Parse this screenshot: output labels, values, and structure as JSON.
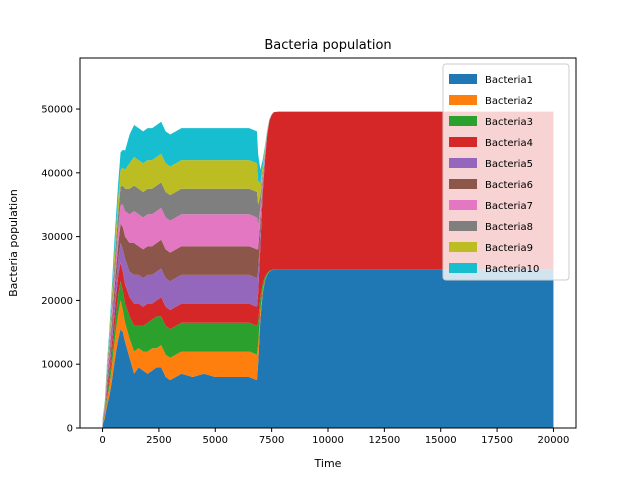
{
  "chart_data": {
    "type": "area",
    "stacked": true,
    "title": "Bacteria population",
    "xlabel": "Time",
    "ylabel": "Bacteria population",
    "xlim": [
      -1000,
      21000
    ],
    "ylim": [
      0,
      58000
    ],
    "xticks": [
      0,
      2500,
      5000,
      7500,
      10000,
      12500,
      15000,
      17500,
      20000
    ],
    "yticks": [
      0,
      10000,
      20000,
      30000,
      40000,
      50000
    ],
    "grid": false,
    "legend_position": "top-right",
    "x": [
      0,
      100,
      200,
      300,
      400,
      500,
      600,
      700,
      800,
      900,
      1000,
      1200,
      1400,
      1600,
      1800,
      2000,
      2200,
      2400,
      2600,
      2800,
      3000,
      3500,
      4000,
      4500,
      5000,
      5500,
      6000,
      6500,
      6850,
      6900,
      7000,
      7100,
      7200,
      7300,
      7400,
      7500,
      7600,
      7800,
      8000,
      10000,
      12500,
      15000,
      17500,
      20000
    ],
    "series": [
      {
        "name": "Bacteria1",
        "color": "#1f77b4",
        "values": [
          500,
          1500,
          3500,
          5000,
          7000,
          9500,
          12000,
          14000,
          15500,
          15000,
          13500,
          11000,
          8500,
          9500,
          9000,
          8500,
          9000,
          9500,
          9500,
          8000,
          7500,
          8500,
          8000,
          8500,
          8000,
          8000,
          8000,
          8000,
          7500,
          10000,
          17000,
          21000,
          23000,
          24000,
          24500,
          24700,
          24800,
          24800,
          24800,
          24800,
          24800,
          24800,
          24800,
          24800
        ]
      },
      {
        "name": "Bacteria2",
        "color": "#ff7f0e",
        "values": [
          100,
          400,
          1000,
          1500,
          2200,
          3000,
          3500,
          4000,
          4500,
          3500,
          3000,
          3000,
          3500,
          3000,
          3000,
          3500,
          3500,
          3000,
          3500,
          3500,
          3500,
          3500,
          4000,
          3500,
          4000,
          4000,
          4000,
          4000,
          4000,
          3000,
          1500,
          600,
          200,
          80,
          30,
          10,
          0,
          0,
          0,
          0,
          0,
          0,
          0,
          0
        ]
      },
      {
        "name": "Bacteria3",
        "color": "#2ca02c",
        "values": [
          100,
          300,
          800,
          1200,
          1800,
          2200,
          2500,
          3000,
          3000,
          3000,
          3000,
          3500,
          4000,
          3500,
          4000,
          4500,
          4500,
          5000,
          4500,
          4500,
          4500,
          4500,
          4500,
          4500,
          4500,
          4500,
          4500,
          4500,
          4500,
          3500,
          2000,
          1000,
          500,
          200,
          100,
          50,
          20,
          0,
          0,
          0,
          0,
          0,
          0,
          0
        ]
      },
      {
        "name": "Bacteria4",
        "color": "#d62728",
        "values": [
          100,
          300,
          800,
          1200,
          1600,
          2000,
          2500,
          3000,
          3000,
          3000,
          3000,
          3000,
          3500,
          3500,
          3000,
          3000,
          2500,
          2500,
          3000,
          3000,
          3000,
          3000,
          3000,
          3000,
          3000,
          3000,
          3000,
          3000,
          3000,
          4500,
          8000,
          14000,
          18000,
          21500,
          23500,
          24300,
          24700,
          24800,
          24800,
          24800,
          24800,
          24800,
          24800,
          24800
        ]
      },
      {
        "name": "Bacteria5",
        "color": "#9467bd",
        "values": [
          100,
          300,
          700,
          1100,
          1500,
          1900,
          2200,
          2500,
          3000,
          3500,
          4000,
          4000,
          4500,
          4500,
          4500,
          4500,
          4500,
          4500,
          4500,
          4500,
          4500,
          4500,
          4500,
          4500,
          4500,
          4500,
          4500,
          4500,
          4500,
          3500,
          2000,
          900,
          400,
          150,
          50,
          20,
          0,
          0,
          0,
          0,
          0,
          0,
          0,
          0
        ]
      },
      {
        "name": "Bacteria6",
        "color": "#8c564b",
        "values": [
          100,
          300,
          700,
          1100,
          1500,
          1900,
          2200,
          2500,
          3000,
          3500,
          3500,
          4500,
          5000,
          4500,
          4500,
          4500,
          4500,
          4500,
          4500,
          4500,
          4500,
          4500,
          4500,
          4500,
          4500,
          4500,
          4500,
          4500,
          4500,
          3500,
          2000,
          900,
          400,
          150,
          50,
          20,
          0,
          0,
          0,
          0,
          0,
          0,
          0,
          0
        ]
      },
      {
        "name": "Bacteria7",
        "color": "#e377c2",
        "values": [
          100,
          300,
          700,
          1100,
          1500,
          1900,
          2200,
          2500,
          3000,
          3500,
          4000,
          4500,
          5000,
          5000,
          5000,
          5000,
          5000,
          5000,
          5000,
          5000,
          5000,
          5000,
          5000,
          5000,
          5000,
          5000,
          5000,
          5000,
          5000,
          3800,
          2000,
          900,
          400,
          150,
          50,
          20,
          0,
          0,
          0,
          0,
          0,
          0,
          0,
          0
        ]
      },
      {
        "name": "Bacteria8",
        "color": "#7f7f7f",
        "values": [
          100,
          300,
          700,
          1000,
          1400,
          1800,
          2100,
          2400,
          2800,
          3000,
          3500,
          4000,
          4000,
          4000,
          4000,
          4000,
          4000,
          4000,
          4000,
          4000,
          4000,
          4000,
          4000,
          4000,
          4000,
          4000,
          4000,
          4000,
          4000,
          3200,
          1800,
          800,
          350,
          130,
          50,
          20,
          0,
          0,
          0,
          0,
          0,
          0,
          0,
          0
        ]
      },
      {
        "name": "Bacteria9",
        "color": "#bcbd22",
        "values": [
          100,
          300,
          700,
          1000,
          1400,
          1800,
          2100,
          2400,
          2700,
          2800,
          3000,
          4000,
          4500,
          4500,
          4500,
          4500,
          4500,
          4500,
          4500,
          4500,
          4500,
          4500,
          4500,
          4500,
          4500,
          4500,
          4500,
          4500,
          4500,
          3800,
          2000,
          900,
          400,
          150,
          50,
          20,
          0,
          0,
          0,
          0,
          0,
          0,
          0,
          0
        ]
      },
      {
        "name": "Bacteria10",
        "color": "#17becf",
        "values": [
          100,
          300,
          700,
          1000,
          1400,
          1800,
          2100,
          2400,
          2700,
          2800,
          3000,
          4500,
          5000,
          5000,
          5000,
          5000,
          5000,
          5000,
          5000,
          5000,
          5000,
          5000,
          5000,
          5000,
          5000,
          5000,
          5000,
          5000,
          5000,
          4200,
          2200,
          1000,
          450,
          170,
          60,
          20,
          0,
          0,
          0,
          0,
          0,
          0,
          0,
          0
        ]
      }
    ]
  }
}
